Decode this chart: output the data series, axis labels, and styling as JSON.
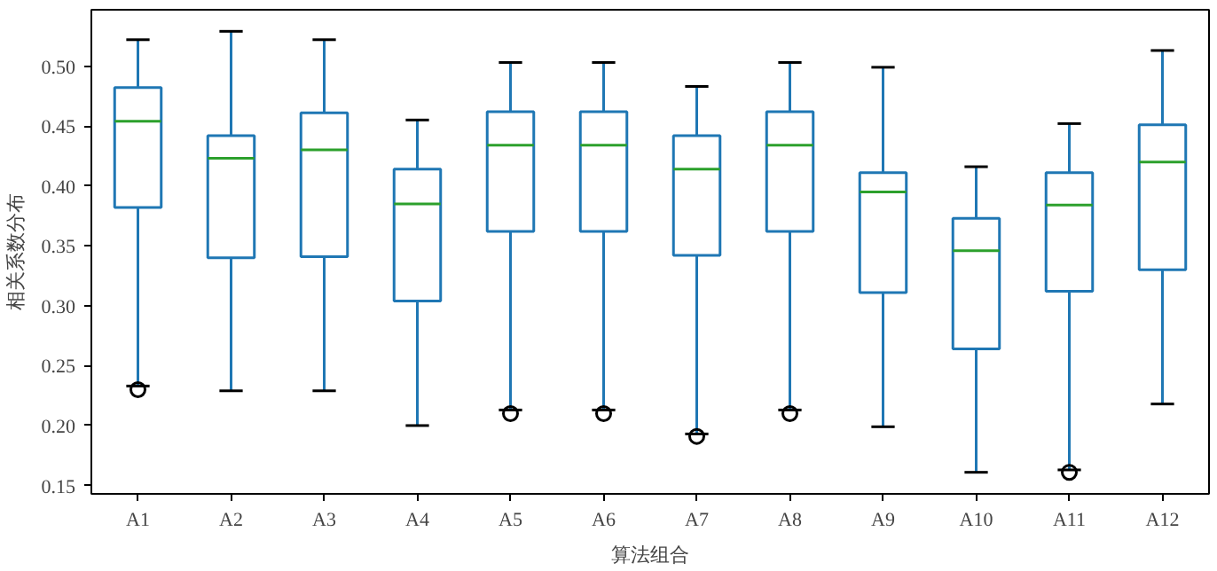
{
  "chart_data": {
    "type": "box",
    "xlabel": "算法组合",
    "ylabel": "相关系数分布",
    "categories": [
      "A1",
      "A2",
      "A3",
      "A4",
      "A5",
      "A6",
      "A7",
      "A8",
      "A9",
      "A10",
      "A11",
      "A12"
    ],
    "series": [
      {
        "color": "#1f77b4",
        "boxes": [
          {
            "low": 0.233,
            "q1": 0.382,
            "median": 0.454,
            "q3": 0.482,
            "high": 0.522,
            "outliers": [
              0.23
            ]
          },
          {
            "low": 0.229,
            "q1": 0.34,
            "median": 0.423,
            "q3": 0.442,
            "high": 0.529
          },
          {
            "low": 0.229,
            "q1": 0.341,
            "median": 0.43,
            "q3": 0.461,
            "high": 0.522
          },
          {
            "low": 0.2,
            "q1": 0.304,
            "median": 0.385,
            "q3": 0.414,
            "high": 0.455
          },
          {
            "low": 0.213,
            "q1": 0.362,
            "median": 0.434,
            "q3": 0.462,
            "high": 0.503,
            "outliers": [
              0.21
            ]
          },
          {
            "low": 0.213,
            "q1": 0.362,
            "median": 0.434,
            "q3": 0.462,
            "high": 0.503,
            "outliers": [
              0.21
            ]
          },
          {
            "low": 0.193,
            "q1": 0.342,
            "median": 0.414,
            "q3": 0.442,
            "high": 0.483,
            "outliers": [
              0.191
            ]
          },
          {
            "low": 0.213,
            "q1": 0.362,
            "median": 0.434,
            "q3": 0.462,
            "high": 0.503,
            "outliers": [
              0.21
            ]
          },
          {
            "low": 0.199,
            "q1": 0.311,
            "median": 0.395,
            "q3": 0.411,
            "high": 0.499
          },
          {
            "low": 0.161,
            "q1": 0.264,
            "median": 0.346,
            "q3": 0.373,
            "high": 0.416
          },
          {
            "low": 0.163,
            "q1": 0.312,
            "median": 0.384,
            "q3": 0.411,
            "high": 0.452,
            "outliers": [
              0.161
            ]
          },
          {
            "low": 0.218,
            "q1": 0.33,
            "median": 0.42,
            "q3": 0.451,
            "high": 0.513
          }
        ]
      }
    ],
    "ylim": [
      0.143,
      0.547
    ],
    "yticks": [
      0.15,
      {
        "value": 0.2,
        "label": "0.20"
      },
      0.25,
      {
        "value": 0.3,
        "label": "0.30"
      },
      0.35,
      {
        "value": 0.4,
        "label": "0.40"
      },
      0.45,
      {
        "value": 0.5,
        "label": "0.50"
      }
    ],
    "grid": false
  }
}
